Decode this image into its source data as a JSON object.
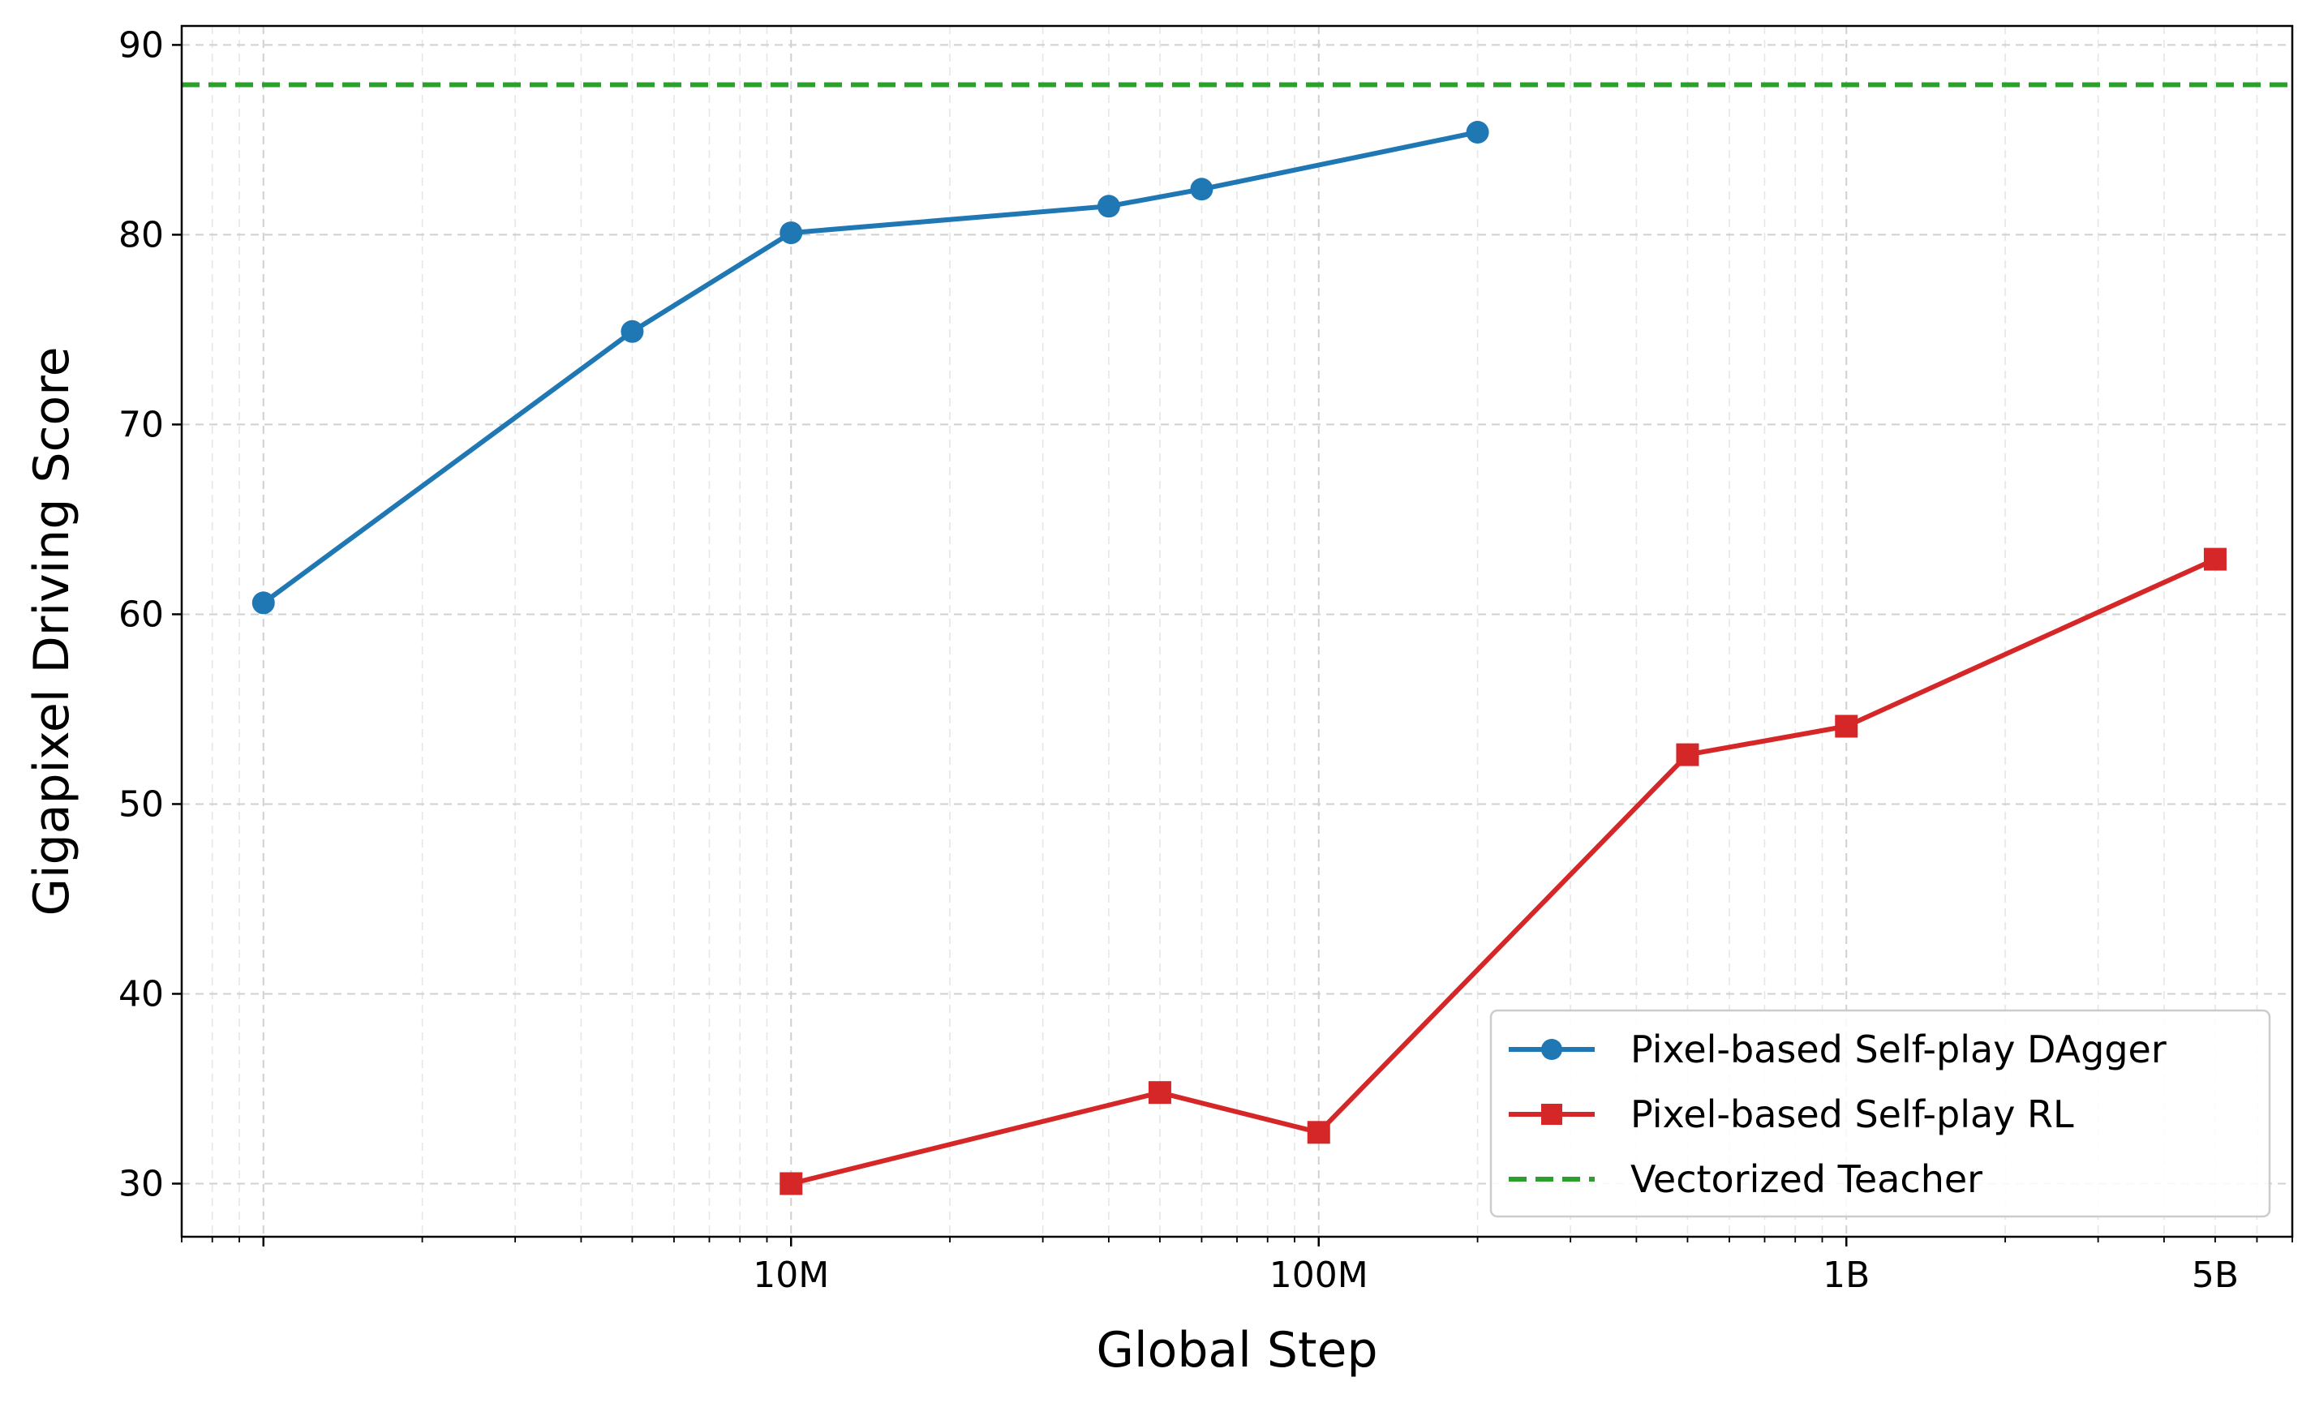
{
  "chart_data": {
    "type": "line",
    "title": "",
    "xlabel": "Global Step",
    "ylabel": "Gigapixel Driving Score",
    "x_scale": "log",
    "xlim": [
      700000,
      7000000000
    ],
    "ylim": [
      27.2,
      91
    ],
    "x_ticks": [
      {
        "value": 10000000,
        "label": "10M"
      },
      {
        "value": 100000000,
        "label": "100M"
      },
      {
        "value": 1000000000,
        "label": "1B"
      },
      {
        "value": 5000000000,
        "label": "5B"
      }
    ],
    "y_ticks": [
      {
        "value": 30,
        "label": "30"
      },
      {
        "value": 40,
        "label": "40"
      },
      {
        "value": 50,
        "label": "50"
      },
      {
        "value": 60,
        "label": "60"
      },
      {
        "value": 70,
        "label": "70"
      },
      {
        "value": 80,
        "label": "80"
      },
      {
        "value": 90,
        "label": "90"
      }
    ],
    "grid": true,
    "legend_position": "bottom-right",
    "series": [
      {
        "name": "Pixel-based Self-play DAgger",
        "color": "#1f77b4",
        "marker": "circle",
        "x": [
          1000000,
          5000000,
          10000000,
          40000000,
          60000000,
          200000000
        ],
        "y": [
          60.6,
          74.9,
          80.1,
          81.5,
          82.4,
          85.4
        ]
      },
      {
        "name": "Pixel-based Self-play RL",
        "color": "#d62728",
        "marker": "square",
        "x": [
          10000000,
          50000000,
          100000000,
          500000000,
          1000000000,
          5000000000
        ],
        "y": [
          30.0,
          34.8,
          32.7,
          52.6,
          54.1,
          62.9
        ]
      }
    ],
    "reference_lines": [
      {
        "name": "Vectorized Teacher",
        "color": "#2ca02c",
        "style": "dashed",
        "y": 87.9
      }
    ]
  }
}
